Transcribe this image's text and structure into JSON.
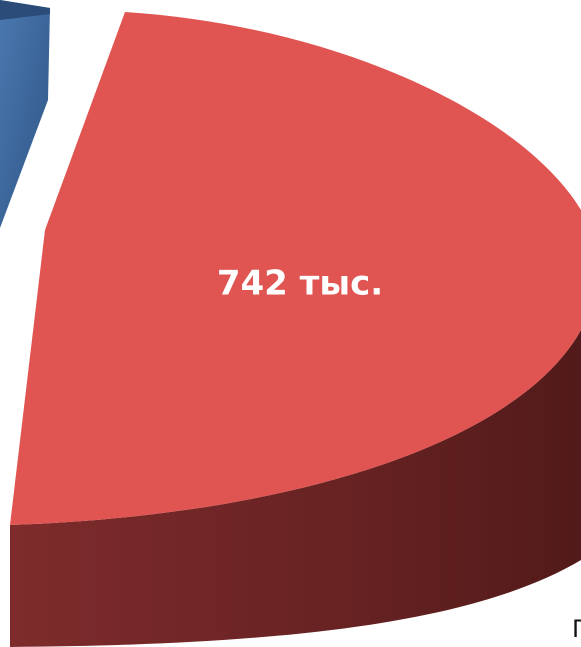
{
  "chart_data": {
    "type": "pie",
    "values": [
      742
    ],
    "value_labels": [
      "742 тыс."
    ],
    "color": "#e05552",
    "annotation": "Г"
  }
}
